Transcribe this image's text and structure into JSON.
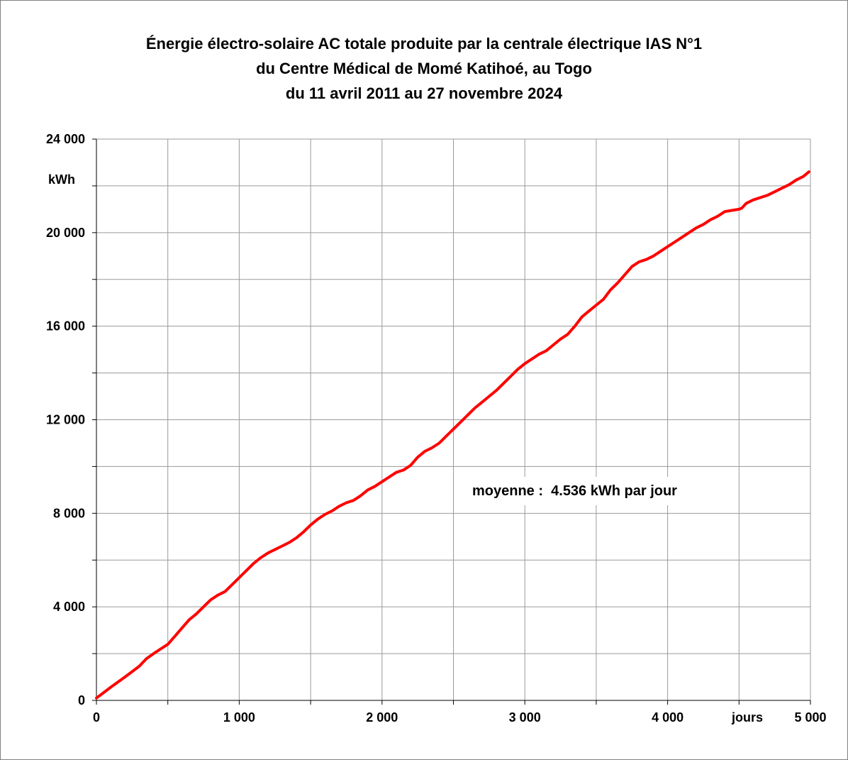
{
  "chart_data": {
    "type": "line",
    "title": [
      "Énergie électro-solaire AC totale produite par la centrale électrique IAS N°1",
      "du Centre Médical de Momé Katihoé, au Togo",
      "du 11 avril 2011 au 27 novembre 2024"
    ],
    "xlabel": "jours",
    "ylabel": "kWh",
    "xlim": [
      0,
      5000
    ],
    "ylim": [
      0,
      24000
    ],
    "x_ticks": [
      0,
      1000,
      2000,
      3000,
      4000,
      5000
    ],
    "x_tick_labels": [
      "0",
      "1 000",
      "2 000",
      "3 000",
      "4 000",
      "5 000"
    ],
    "y_ticks": [
      0,
      4000,
      8000,
      12000,
      16000,
      20000,
      24000
    ],
    "y_tick_labels": [
      "0",
      "4 000",
      "8 000",
      "12 000",
      "16 000",
      "20 000",
      "24 000"
    ],
    "grid": true,
    "annotation": "moyenne :  4.536 kWh par jour",
    "line_color": "#ff0000",
    "series": [
      {
        "x": [
          0,
          50,
          100,
          150,
          200,
          250,
          300,
          350,
          400,
          450,
          500,
          550,
          600,
          650,
          700,
          750,
          800,
          850,
          900,
          950,
          1000,
          1050,
          1100,
          1150,
          1200,
          1250,
          1300,
          1350,
          1400,
          1450,
          1500,
          1550,
          1600,
          1650,
          1700,
          1750,
          1800,
          1850,
          1900,
          1950,
          2000,
          2050,
          2100,
          2150,
          2200,
          2250,
          2300,
          2350,
          2400,
          2450,
          2500,
          2550,
          2600,
          2650,
          2700,
          2750,
          2800,
          2850,
          2900,
          2950,
          3000,
          3050,
          3100,
          3150,
          3200,
          3250,
          3300,
          3350,
          3400,
          3450,
          3500,
          3550,
          3600,
          3650,
          3700,
          3750,
          3800,
          3850,
          3900,
          3950,
          4000,
          4050,
          4100,
          4150,
          4200,
          4250,
          4300,
          4350,
          4400,
          4450,
          4500,
          4520,
          4550,
          4600,
          4650,
          4700,
          4750,
          4800,
          4850,
          4900,
          4950,
          4990
        ],
        "y": [
          100,
          330,
          560,
          780,
          1000,
          1230,
          1460,
          1780,
          2000,
          2200,
          2400,
          2750,
          3100,
          3450,
          3700,
          4000,
          4300,
          4500,
          4650,
          4950,
          5250,
          5550,
          5850,
          6100,
          6300,
          6450,
          6600,
          6750,
          6950,
          7200,
          7500,
          7750,
          7950,
          8100,
          8300,
          8450,
          8550,
          8750,
          9000,
          9150,
          9350,
          9550,
          9750,
          9850,
          10050,
          10400,
          10650,
          10800,
          11000,
          11300,
          11600,
          11900,
          12200,
          12500,
          12750,
          13000,
          13250,
          13550,
          13850,
          14150,
          14400,
          14600,
          14800,
          14950,
          15200,
          15450,
          15650,
          16000,
          16400,
          16650,
          16900,
          17150,
          17550,
          17850,
          18200,
          18550,
          18750,
          18850,
          19000,
          19200,
          19400,
          19600,
          19800,
          20000,
          20200,
          20350,
          20550,
          20700,
          20900,
          20950,
          21000,
          21050,
          21250,
          21400,
          21500,
          21600,
          21750,
          21900,
          22050,
          22250,
          22400,
          22600
        ]
      }
    ]
  }
}
